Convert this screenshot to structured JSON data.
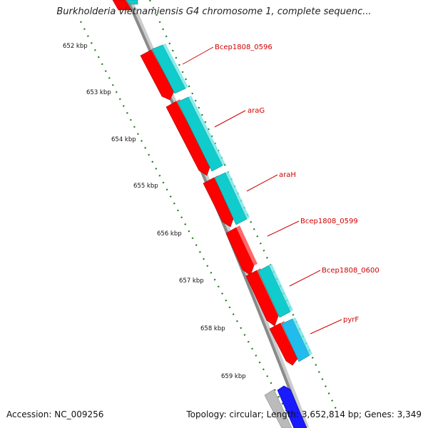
{
  "title": "Burkholderia vietnamiensis G4 chromosome 1, complete sequenc...",
  "footer": {
    "accession": "Accession: NC_009256",
    "summary": "Topology: circular; Length: 3,652,814 bp; Genes: 3,349"
  },
  "kbp_labels": [
    "652 kbp",
    "653 kbp",
    "654 kbp",
    "655 kbp",
    "656 kbp",
    "657 kbp",
    "658 kbp",
    "659 kbp"
  ],
  "gene_labels": [
    "Bcep1808_0596",
    "araG",
    "araH",
    "Bcep1808_0599",
    "Bcep1808_0600",
    "pyrF"
  ],
  "colors": {
    "backbone": "#8a8a8a",
    "cds": "#ff0000",
    "gene": "#11cccc",
    "gene_light": "#22bbee",
    "gene_other": "#1a1aff",
    "gene_grey": "#bbbbbb",
    "tick": "#1f7a1f",
    "label_line": "#d00000"
  }
}
